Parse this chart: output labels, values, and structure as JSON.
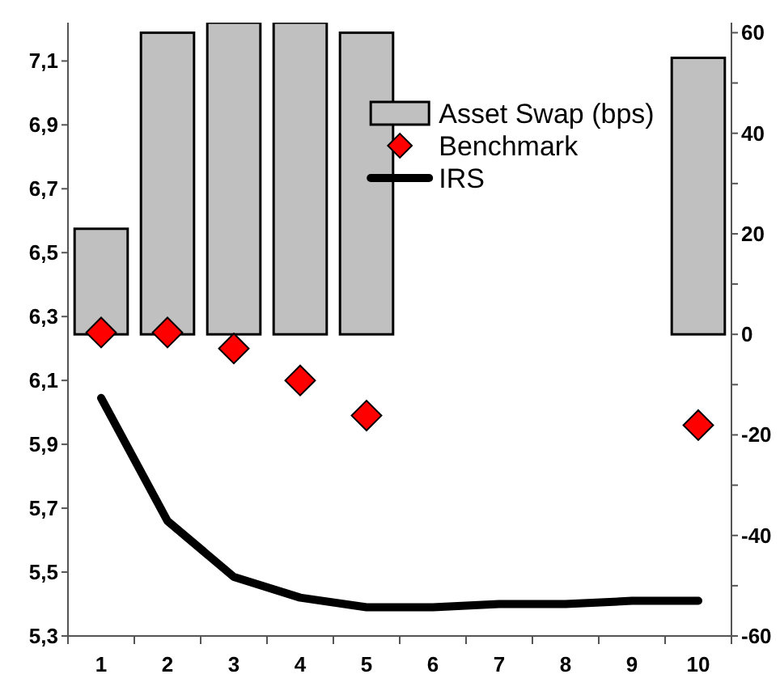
{
  "chart_data": {
    "type": "bar",
    "categories": [
      "1",
      "2",
      "3",
      "4",
      "5",
      "6",
      "7",
      "8",
      "9",
      "10"
    ],
    "series": [
      {
        "name": "Asset Swap (bps)",
        "type": "bar",
        "axis": "y2",
        "color": "#c0c0c0",
        "values": [
          21,
          60,
          62,
          62,
          60,
          null,
          null,
          null,
          null,
          55
        ]
      },
      {
        "name": "Benchmark",
        "type": "scatter",
        "marker": "diamond",
        "color": "#ff0000",
        "values": [
          6.25,
          6.25,
          6.2,
          6.1,
          5.99,
          null,
          null,
          null,
          null,
          5.96
        ]
      },
      {
        "name": "IRS",
        "type": "line",
        "marker": "none",
        "line_style": "solid",
        "color": "#000000",
        "values": [
          6.045,
          5.66,
          5.485,
          5.42,
          5.39,
          5.39,
          5.4,
          5.4,
          5.41,
          5.41
        ]
      }
    ],
    "ylim": [
      5.3,
      7.22
    ],
    "yticks": [
      {
        "value": 5.3,
        "label": "5,3"
      },
      {
        "value": 5.5,
        "label": "5,5"
      },
      {
        "value": 5.7,
        "label": "5,7"
      },
      {
        "value": 5.9,
        "label": "5,9"
      },
      {
        "value": 6.1,
        "label": "6,1"
      },
      {
        "value": 6.3,
        "label": "6,3"
      },
      {
        "value": 6.5,
        "label": "6,5"
      },
      {
        "value": 6.7,
        "label": "6,7"
      },
      {
        "value": 6.9,
        "label": "6,9"
      },
      {
        "value": 7.1,
        "label": "7,1"
      }
    ],
    "y2lim": [
      -60,
      62
    ],
    "y2ticks": [
      -60,
      {
        "value": -50,
        "label": null
      },
      -40,
      {
        "value": -30,
        "label": null
      },
      -20,
      {
        "value": -10,
        "label": null
      },
      0,
      {
        "value": 10,
        "label": null
      },
      20,
      {
        "value": 30,
        "label": null
      },
      40,
      {
        "value": 50,
        "label": null
      },
      60
    ],
    "grid": false,
    "legend": "top"
  }
}
